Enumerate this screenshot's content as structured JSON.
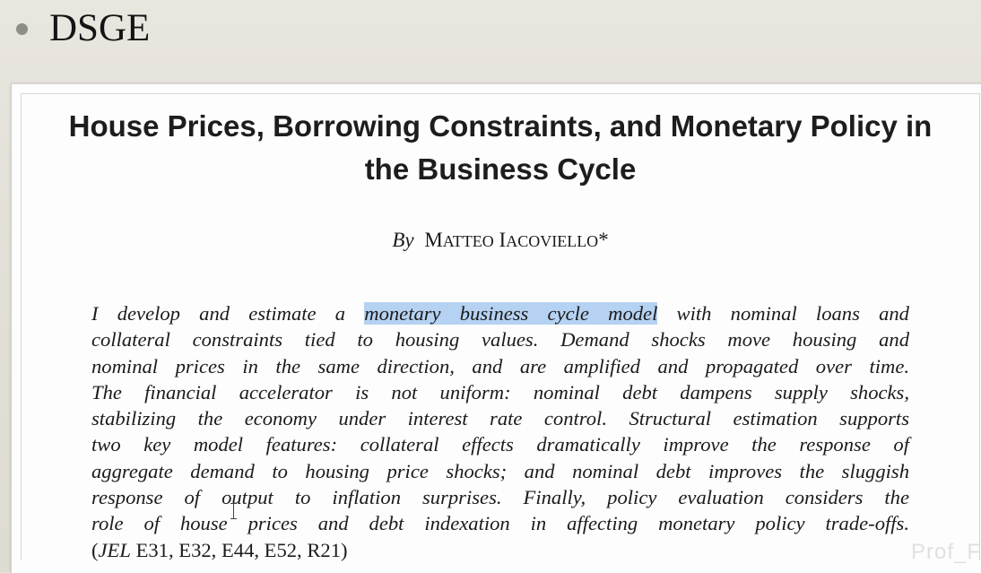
{
  "slide": {
    "bullet_text": "DSGE"
  },
  "paper": {
    "title_line1": "House Prices, Borrowing Constraints, and Monetary Policy in",
    "title_line2": "the Business Cycle",
    "byline_by": "By",
    "author_first_initial": "M",
    "author_first_rest": "ATTEO",
    "author_last_initial": "I",
    "author_last_rest": "ACOVIELLO",
    "author_mark": "*",
    "abstract": {
      "line1_pre": "I develop and estimate a ",
      "line1_highlight": "monetary business cycle model",
      "line1_post": " with nominal loans and",
      "line2": "collateral constraints tied to housing values. Demand shocks move housing and",
      "line3": "nominal prices in the same direction, and are amplified and propagated over time.",
      "line4": "The financial accelerator is not uniform: nominal debt dampens supply shocks,",
      "line5": "stabilizing the economy under interest rate control. Structural estimation supports",
      "line6": "two key model features: collateral effects dramatically improve the response of",
      "line7": "aggregate demand to housing price shocks; and nominal debt improves the sluggish",
      "line8": "response of output to inflation surprises. Finally, policy evaluation considers the",
      "line9": "role of house prices and debt indexation in affecting monetary policy trade-offs.",
      "jel_open": "(",
      "jel_label": "JEL",
      "jel_codes": " E31, E32, E44, E52, R21)"
    },
    "highlight_color": "#b6d2f2"
  },
  "watermark": "Prof_F"
}
